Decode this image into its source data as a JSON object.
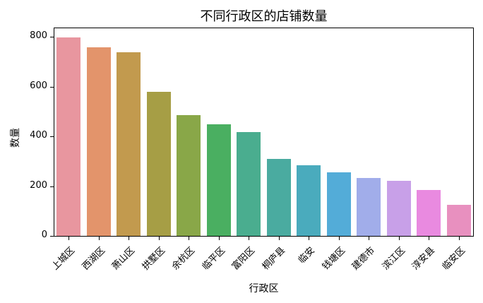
{
  "chart_data": {
    "type": "bar",
    "title": "不同行政区的店铺数量",
    "xlabel": "行政区",
    "ylabel": "数量",
    "categories": [
      "上城区",
      "西湖区",
      "萧山区",
      "拱墅区",
      "余杭区",
      "临平区",
      "富阳区",
      "桐庐县",
      "临安",
      "钱塘区",
      "建德市",
      "滨江区",
      "淳安县",
      "临安区"
    ],
    "values": [
      798,
      758,
      739,
      580,
      486,
      449,
      418,
      310,
      284,
      256,
      233,
      222,
      185,
      125
    ],
    "colors": [
      "#e8969f",
      "#e3946b",
      "#c29a4e",
      "#a69e45",
      "#89a748",
      "#4aaf61",
      "#4aad8f",
      "#4aaba0",
      "#4aabbd",
      "#53acd8",
      "#a1adea",
      "#c8a0e8",
      "#e98ae0",
      "#e890bf"
    ],
    "yticks": [
      0,
      200,
      400,
      600,
      800
    ],
    "ylim": [
      0,
      838
    ],
    "grid": false,
    "legend": null
  }
}
